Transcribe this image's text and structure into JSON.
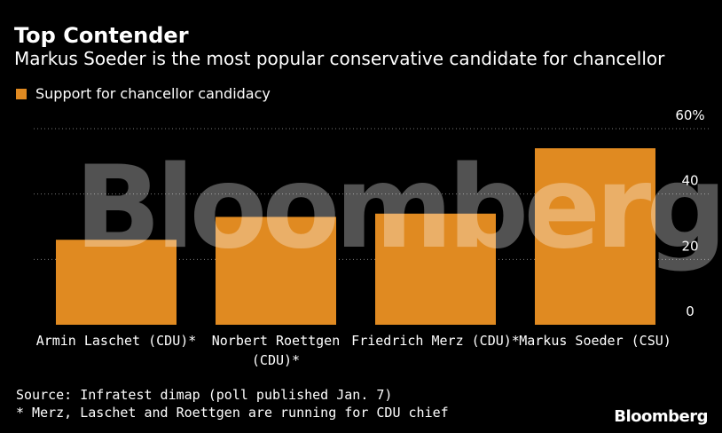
{
  "header": {
    "title": "Top Contender",
    "subtitle": "Markus Soeder is the most popular conservative candidate for chancellor"
  },
  "legend": {
    "label": "Support for chancellor candidacy",
    "color": "#e08a21"
  },
  "footer": {
    "source": "Source: Infratest dimap (poll published Jan. 7)",
    "note": "* Merz, Laschet and Roettgen are running for CDU chief",
    "brand": "Bloomberg"
  },
  "watermark": "Bloomberg",
  "chart_data": {
    "type": "bar",
    "title": "Top Contender",
    "categories": [
      [
        "Armin Laschet (CDU)*"
      ],
      [
        "Norbert Roettgen",
        "(CDU)*"
      ],
      [
        "Friedrich Merz (CDU)*"
      ],
      [
        "Markus Soeder (CSU)"
      ]
    ],
    "series": [
      {
        "name": "Support for chancellor candidacy",
        "values": [
          26,
          33,
          34,
          54
        ],
        "color": "#e08a21"
      }
    ],
    "ylim": [
      0,
      60
    ],
    "yticks": [
      0,
      20,
      40,
      60
    ],
    "ytick_labels": [
      "0",
      "20",
      "40",
      "60%"
    ],
    "grid": true,
    "xlabel": "",
    "ylabel": ""
  }
}
